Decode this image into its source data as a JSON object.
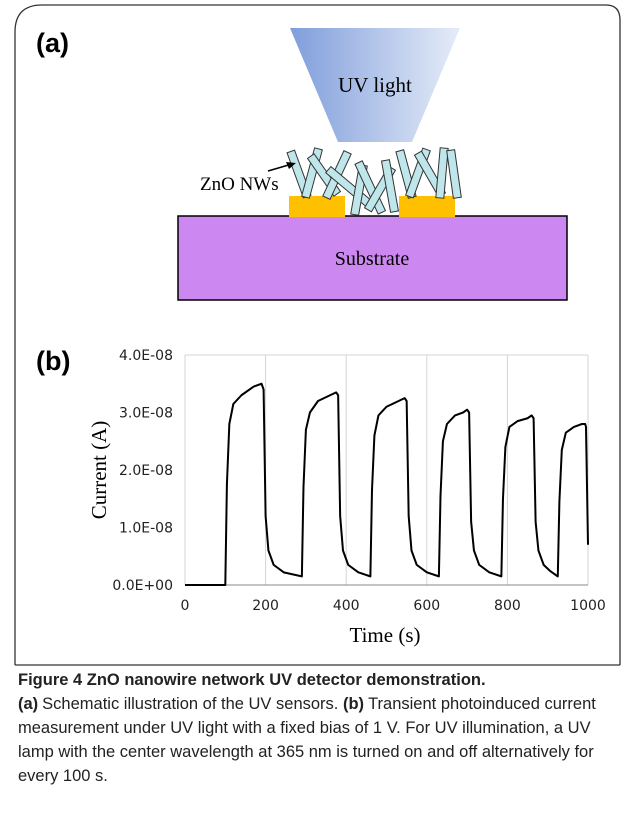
{
  "figure": {
    "panel_a": {
      "label": "(a)",
      "uv_light": "UV light",
      "nanowires": "ZnO NWs",
      "substrate": "Substrate"
    },
    "panel_b": {
      "label": "(b)"
    },
    "chart_data": {
      "type": "line",
      "xlabel": "Time (s)",
      "ylabel": "Current (A)",
      "xlim": [
        0,
        1000
      ],
      "xticks": [
        0,
        200,
        400,
        600,
        800,
        1000
      ],
      "ylim": [
        0,
        4e-08
      ],
      "yticks": [
        {
          "value": 0,
          "label": "0.0E+00"
        },
        {
          "value": 1e-08,
          "label": "1.0E-08"
        },
        {
          "value": 2e-08,
          "label": "2.0E-08"
        },
        {
          "value": 3e-08,
          "label": "3.0E-08"
        },
        {
          "value": 4e-08,
          "label": "4.0E-08"
        }
      ],
      "grid": true,
      "series": [
        {
          "color": "#000000",
          "x": [
            0,
            100,
            104,
            110,
            120,
            140,
            170,
            190,
            195,
            200,
            207,
            220,
            245,
            290,
            294,
            300,
            310,
            330,
            360,
            375,
            380,
            385,
            392,
            405,
            430,
            460,
            464,
            470,
            480,
            500,
            530,
            545,
            550,
            555,
            562,
            575,
            600,
            630,
            634,
            640,
            650,
            670,
            690,
            700,
            705,
            710,
            717,
            730,
            755,
            785,
            789,
            795,
            805,
            825,
            850,
            860,
            865,
            870,
            877,
            890,
            905,
            925,
            929,
            935,
            945,
            965,
            985,
            993,
            995,
            1000
          ],
          "values": [
            0,
            0,
            1.75e-08,
            2.8e-08,
            3.15e-08,
            3.3e-08,
            3.45e-08,
            3.5e-08,
            3.4e-08,
            1.2e-08,
            6e-09,
            3.5e-09,
            2.2e-09,
            1.5e-09,
            1.7e-08,
            2.7e-08,
            3e-08,
            3.2e-08,
            3.3e-08,
            3.35e-08,
            3.3e-08,
            1.2e-08,
            6e-09,
            3.5e-09,
            2.2e-09,
            1.5e-09,
            1.65e-08,
            2.6e-08,
            2.95e-08,
            3.1e-08,
            3.2e-08,
            3.25e-08,
            3.2e-08,
            1.2e-08,
            6e-09,
            3.5e-09,
            2.2e-09,
            1.5e-09,
            1.55e-08,
            2.5e-08,
            2.8e-08,
            2.95e-08,
            3e-08,
            3.05e-08,
            3e-08,
            1.1e-08,
            6e-09,
            3.5e-09,
            2.2e-09,
            1.5e-09,
            1.5e-08,
            2.4e-08,
            2.75e-08,
            2.85e-08,
            2.9e-08,
            2.95e-08,
            2.9e-08,
            1.1e-08,
            6e-09,
            3.5e-09,
            2.5e-09,
            1.5e-09,
            1.45e-08,
            2.35e-08,
            2.65e-08,
            2.75e-08,
            2.8e-08,
            2.8e-08,
            2.75e-08,
            7e-09
          ]
        }
      ]
    }
  },
  "caption": {
    "title": "Figure 4 ZnO nanowire network UV detector demonstration.",
    "parts": [
      {
        "label": "(a)",
        "text": "Schematic illustration of the UV sensors."
      },
      {
        "label": "(b)",
        "text": "Transient photoinduced current measurement under UV light with a fixed bias of 1 V. For UV illumination, a UV lamp with the center wavelength at 365 nm is turned on and off alternatively for every 100 s."
      }
    ]
  }
}
